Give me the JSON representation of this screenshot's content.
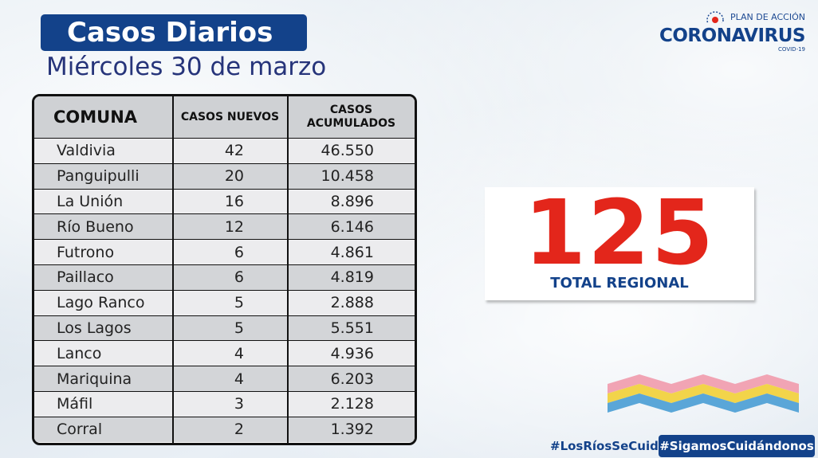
{
  "header": {
    "title": "Casos Diarios",
    "subtitle": "Miércoles 30 de marzo"
  },
  "logo": {
    "plan": "PLAN DE ACCIÓN",
    "main": "CORONAVIRUS",
    "covid": "COVID-19"
  },
  "table": {
    "headers": {
      "comuna": "COMUNA",
      "nuevos": "CASOS NUEVOS",
      "acum_line1": "CASOS",
      "acum_line2": "ACUMULADOS"
    },
    "rows": [
      {
        "comuna": "Valdivia",
        "nuevos": "42",
        "acumulados": "46.550"
      },
      {
        "comuna": "Panguipulli",
        "nuevos": "20",
        "acumulados": "10.458"
      },
      {
        "comuna": "La Unión",
        "nuevos": "16",
        "acumulados": "8.896"
      },
      {
        "comuna": "Río Bueno",
        "nuevos": "12",
        "acumulados": "6.146"
      },
      {
        "comuna": "Futrono",
        "nuevos": "6",
        "acumulados": "4.861"
      },
      {
        "comuna": "Paillaco",
        "nuevos": "6",
        "acumulados": "4.819"
      },
      {
        "comuna": "Lago Ranco",
        "nuevos": "5",
        "acumulados": "2.888"
      },
      {
        "comuna": "Los Lagos",
        "nuevos": "5",
        "acumulados": "5.551"
      },
      {
        "comuna": "Lanco",
        "nuevos": "4",
        "acumulados": "4.936"
      },
      {
        "comuna": "Mariquina",
        "nuevos": "4",
        "acumulados": "6.203"
      },
      {
        "comuna": "Máfil",
        "nuevos": "3",
        "acumulados": "2.128"
      },
      {
        "comuna": "Corral",
        "nuevos": "2",
        "acumulados": "1.392"
      }
    ]
  },
  "total": {
    "value": "125",
    "label": "TOTAL REGIONAL"
  },
  "hashtags": {
    "tag1": "#LosRíosSeCuida",
    "tag2": "#SigamosCuidándonos"
  },
  "colors": {
    "brand_blue": "#13428a",
    "total_red": "#e3261b"
  }
}
